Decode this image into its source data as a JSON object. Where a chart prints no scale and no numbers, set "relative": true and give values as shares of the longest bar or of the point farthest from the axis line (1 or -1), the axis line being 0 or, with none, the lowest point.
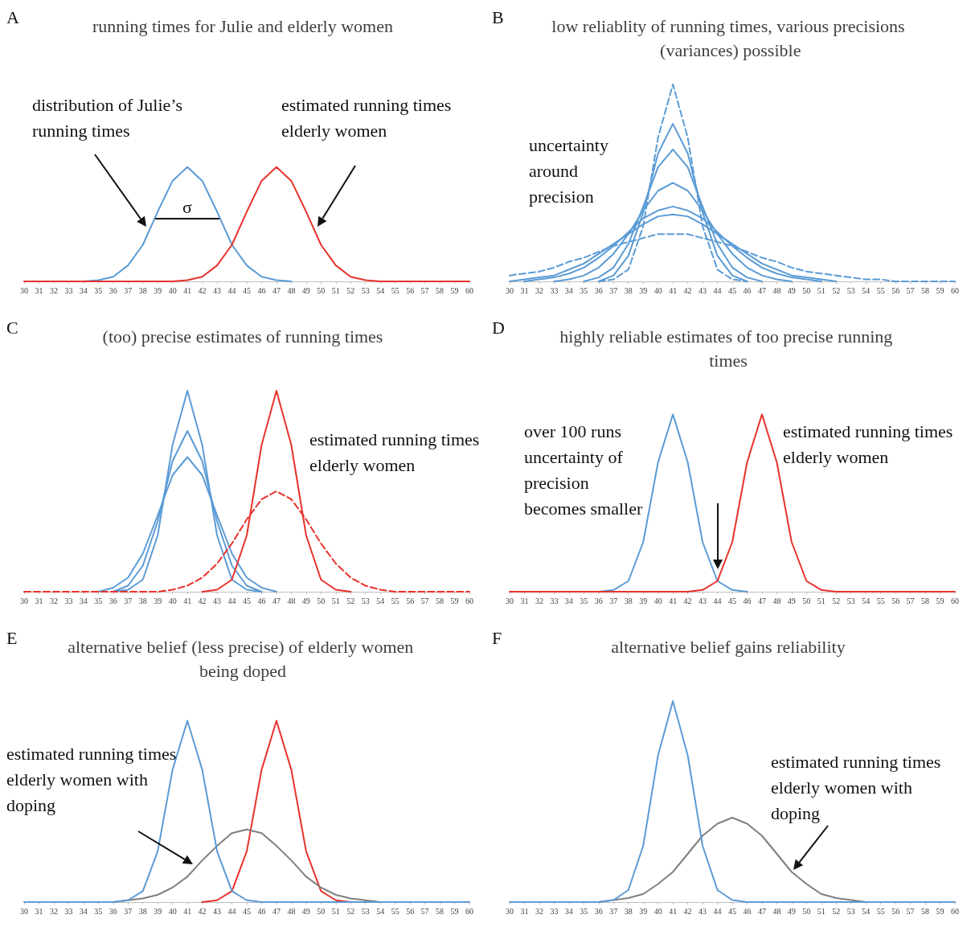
{
  "chart_data": [
    {
      "type": "line",
      "title": "running times for Julie and elderly women",
      "relative": true,
      "marker": "none",
      "line_style": "solid",
      "x": [
        30,
        31,
        32,
        33,
        34,
        35,
        36,
        37,
        38,
        39,
        40,
        41,
        42,
        43,
        44,
        45,
        46,
        47,
        48,
        49,
        50,
        51,
        52,
        53,
        54,
        55,
        56,
        57,
        58,
        59,
        60
      ],
      "xlim": [
        30,
        60
      ],
      "xticks": [
        30,
        31,
        32,
        33,
        34,
        35,
        36,
        37,
        38,
        39,
        40,
        41,
        42,
        43,
        44,
        45,
        46,
        47,
        48,
        49,
        50,
        51,
        52,
        53,
        54,
        55,
        56,
        57,
        58,
        59,
        60
      ],
      "annotations": [
        "A",
        "distribution of Julie’s running times",
        "estimated running times elderly women",
        "σ"
      ],
      "series": [
        {
          "color": "#5b9bd5",
          "values": [
            null,
            null,
            null,
            null,
            0,
            0.01,
            0.04,
            0.14,
            0.32,
            0.61,
            0.88,
            1,
            0.88,
            0.61,
            0.32,
            0.14,
            0.04,
            0.01,
            0,
            null,
            null,
            null,
            null,
            null,
            null,
            null,
            null,
            null,
            null,
            null,
            null
          ]
        },
        {
          "color": "#e8322b",
          "values": [
            0,
            0,
            0,
            0,
            0,
            0,
            0,
            0,
            0,
            0,
            0,
            0.01,
            0.04,
            0.14,
            0.32,
            0.61,
            0.88,
            1,
            0.88,
            0.61,
            0.32,
            0.14,
            0.04,
            0.01,
            0,
            0,
            0,
            0,
            0,
            0,
            0
          ]
        }
      ]
    },
    {
      "type": "line",
      "title": "low reliablity of running times, various precisions (variances) possible",
      "relative": true,
      "marker": "none",
      "line_style": "solid",
      "x": [
        30,
        31,
        32,
        33,
        34,
        35,
        36,
        37,
        38,
        39,
        40,
        41,
        42,
        43,
        44,
        45,
        46,
        47,
        48,
        49,
        50,
        51,
        52,
        53,
        54,
        55,
        56,
        57,
        58,
        59,
        60
      ],
      "xlim": [
        30,
        60
      ],
      "xticks": [
        30,
        31,
        32,
        33,
        34,
        35,
        36,
        37,
        38,
        39,
        40,
        41,
        42,
        43,
        44,
        45,
        46,
        47,
        48,
        49,
        50,
        51,
        52,
        53,
        54,
        55,
        56,
        57,
        58,
        59,
        60
      ],
      "annotations": [
        "B",
        "uncertainty around precision"
      ],
      "series": [
        {
          "color": "#5b9bd5",
          "line_style": "dashed",
          "values": [
            null,
            null,
            null,
            null,
            null,
            null,
            0,
            0.01,
            0.06,
            0.28,
            0.73,
            1,
            0.73,
            0.28,
            0.06,
            0.01,
            0,
            null,
            null,
            null,
            null,
            null,
            null,
            null,
            null,
            null,
            null,
            null,
            null,
            null,
            null
          ]
        },
        {
          "color": "#5b9bd5",
          "values": [
            null,
            null,
            null,
            null,
            null,
            null,
            0,
            0.03,
            0.13,
            0.35,
            0.65,
            0.8,
            0.65,
            0.35,
            0.13,
            0.03,
            0,
            null,
            null,
            null,
            null,
            null,
            null,
            null,
            null,
            null,
            null,
            null,
            null,
            null,
            null
          ]
        },
        {
          "color": "#5b9bd5",
          "values": [
            null,
            null,
            null,
            null,
            null,
            0,
            0.02,
            0.07,
            0.19,
            0.38,
            0.58,
            0.67,
            0.58,
            0.38,
            0.19,
            0.07,
            0.02,
            0,
            null,
            null,
            null,
            null,
            null,
            null,
            null,
            null,
            null,
            null,
            null,
            null,
            null
          ]
        },
        {
          "color": "#5b9bd5",
          "values": [
            null,
            null,
            null,
            0,
            0.01,
            0.03,
            0.07,
            0.14,
            0.24,
            0.36,
            0.46,
            0.5,
            0.46,
            0.36,
            0.24,
            0.14,
            0.07,
            0.03,
            0.01,
            0,
            null,
            null,
            null,
            null,
            null,
            null,
            null,
            null,
            null,
            null,
            null
          ]
        },
        {
          "color": "#5b9bd5",
          "values": [
            null,
            0,
            0.01,
            0.02,
            0.04,
            0.07,
            0.12,
            0.18,
            0.25,
            0.32,
            0.36,
            0.38,
            0.36,
            0.32,
            0.25,
            0.18,
            0.12,
            0.07,
            0.04,
            0.02,
            0.01,
            0,
            null,
            null,
            null,
            null,
            null,
            null,
            null,
            null,
            null
          ]
        },
        {
          "color": "#5b9bd5",
          "values": [
            0,
            0.01,
            0.02,
            0.03,
            0.06,
            0.09,
            0.14,
            0.19,
            0.24,
            0.29,
            0.33,
            0.34,
            0.33,
            0.29,
            0.24,
            0.19,
            0.14,
            0.09,
            0.06,
            0.03,
            0.02,
            0.01,
            0,
            null,
            null,
            null,
            null,
            null,
            null,
            null,
            null
          ]
        },
        {
          "color": "#5b9bd5",
          "line_style": "dashed",
          "values": [
            0.03,
            0.04,
            0.05,
            0.07,
            0.1,
            0.12,
            0.15,
            0.18,
            0.2,
            0.22,
            0.24,
            0.24,
            0.24,
            0.22,
            0.2,
            0.18,
            0.15,
            0.12,
            0.1,
            0.07,
            0.05,
            0.04,
            0.03,
            0.02,
            0.01,
            0.01,
            0,
            0,
            0,
            0,
            0
          ]
        }
      ]
    },
    {
      "type": "line",
      "title": "(too) precise estimates of running times",
      "relative": true,
      "marker": "none",
      "line_style": "solid",
      "x": [
        30,
        31,
        32,
        33,
        34,
        35,
        36,
        37,
        38,
        39,
        40,
        41,
        42,
        43,
        44,
        45,
        46,
        47,
        48,
        49,
        50,
        51,
        52,
        53,
        54,
        55,
        56,
        57,
        58,
        59,
        60
      ],
      "xlim": [
        30,
        60
      ],
      "xticks": [
        30,
        31,
        32,
        33,
        34,
        35,
        36,
        37,
        38,
        39,
        40,
        41,
        42,
        43,
        44,
        45,
        46,
        47,
        48,
        49,
        50,
        51,
        52,
        53,
        54,
        55,
        56,
        57,
        58,
        59,
        60
      ],
      "annotations": [
        "C",
        "estimated running times elderly women"
      ],
      "series": [
        {
          "color": "#5b9bd5",
          "values": [
            null,
            null,
            null,
            null,
            null,
            null,
            0,
            0.01,
            0.06,
            0.28,
            0.73,
            1,
            0.73,
            0.28,
            0.06,
            0.01,
            0,
            null,
            null,
            null,
            null,
            null,
            null,
            null,
            null,
            null,
            null,
            null,
            null,
            null,
            null
          ]
        },
        {
          "color": "#5b9bd5",
          "values": [
            null,
            null,
            null,
            null,
            null,
            null,
            0,
            0.03,
            0.13,
            0.35,
            0.65,
            0.8,
            0.65,
            0.35,
            0.13,
            0.03,
            0,
            null,
            null,
            null,
            null,
            null,
            null,
            null,
            null,
            null,
            null,
            null,
            null,
            null,
            null
          ]
        },
        {
          "color": "#5b9bd5",
          "values": [
            null,
            null,
            null,
            null,
            null,
            0,
            0.02,
            0.07,
            0.19,
            0.38,
            0.58,
            0.67,
            0.58,
            0.38,
            0.19,
            0.07,
            0.02,
            0,
            null,
            null,
            null,
            null,
            null,
            null,
            null,
            null,
            null,
            null,
            null,
            null,
            null
          ]
        },
        {
          "color": "#e8322b",
          "values": [
            null,
            null,
            null,
            null,
            null,
            null,
            null,
            null,
            null,
            null,
            null,
            null,
            0,
            0.01,
            0.06,
            0.28,
            0.73,
            1,
            0.73,
            0.28,
            0.06,
            0.01,
            0,
            null,
            null,
            null,
            null,
            null,
            null,
            null,
            null
          ]
        },
        {
          "color": "#e8322b",
          "line_style": "dashed",
          "values": [
            0,
            0,
            0,
            0,
            0,
            0,
            0,
            0,
            0,
            0,
            0.01,
            0.03,
            0.07,
            0.14,
            0.24,
            0.36,
            0.46,
            0.5,
            0.46,
            0.36,
            0.24,
            0.14,
            0.07,
            0.03,
            0.01,
            0,
            0,
            0,
            0,
            0,
            0
          ]
        }
      ]
    },
    {
      "type": "line",
      "title": "highly reliable estimates of too precise running times",
      "relative": true,
      "marker": "none",
      "line_style": "solid",
      "x": [
        30,
        31,
        32,
        33,
        34,
        35,
        36,
        37,
        38,
        39,
        40,
        41,
        42,
        43,
        44,
        45,
        46,
        47,
        48,
        49,
        50,
        51,
        52,
        53,
        54,
        55,
        56,
        57,
        58,
        59,
        60
      ],
      "xlim": [
        30,
        60
      ],
      "xticks": [
        30,
        31,
        32,
        33,
        34,
        35,
        36,
        37,
        38,
        39,
        40,
        41,
        42,
        43,
        44,
        45,
        46,
        47,
        48,
        49,
        50,
        51,
        52,
        53,
        54,
        55,
        56,
        57,
        58,
        59,
        60
      ],
      "annotations": [
        "D",
        "over 100 runs uncertainty of precision becomes smaller",
        "estimated running times elderly women"
      ],
      "series": [
        {
          "color": "#5b9bd5",
          "values": [
            null,
            null,
            null,
            null,
            null,
            null,
            0,
            0.01,
            0.06,
            0.28,
            0.73,
            1,
            0.73,
            0.28,
            0.06,
            0.01,
            0,
            null,
            null,
            null,
            null,
            null,
            null,
            null,
            null,
            null,
            null,
            null,
            null,
            null,
            null
          ]
        },
        {
          "color": "#e8322b",
          "values": [
            0,
            0,
            0,
            0,
            0,
            0,
            0,
            0,
            0,
            0,
            0,
            0,
            0,
            0.01,
            0.06,
            0.28,
            0.73,
            1,
            0.73,
            0.28,
            0.06,
            0.01,
            0,
            0,
            0,
            0,
            0,
            0,
            0,
            0,
            0
          ]
        }
      ]
    },
    {
      "type": "line",
      "title": "alternative belief (less precise) of elderly women being doped",
      "relative": true,
      "marker": "none",
      "line_style": "solid",
      "x": [
        30,
        31,
        32,
        33,
        34,
        35,
        36,
        37,
        38,
        39,
        40,
        41,
        42,
        43,
        44,
        45,
        46,
        47,
        48,
        49,
        50,
        51,
        52,
        53,
        54,
        55,
        56,
        57,
        58,
        59,
        60
      ],
      "xlim": [
        30,
        60
      ],
      "xticks": [
        30,
        31,
        32,
        33,
        34,
        35,
        36,
        37,
        38,
        39,
        40,
        41,
        42,
        43,
        44,
        45,
        46,
        47,
        48,
        49,
        50,
        51,
        52,
        53,
        54,
        55,
        56,
        57,
        58,
        59,
        60
      ],
      "annotations": [
        "E",
        "estimated running times elderly women with doping"
      ],
      "series": [
        {
          "color": "#e8322b",
          "values": [
            null,
            null,
            null,
            null,
            null,
            null,
            null,
            null,
            null,
            null,
            null,
            null,
            0,
            0.01,
            0.06,
            0.28,
            0.73,
            1,
            0.73,
            0.28,
            0.06,
            0.01,
            0,
            null,
            null,
            null,
            null,
            null,
            null,
            null,
            null
          ]
        },
        {
          "color": "#7f7f7f",
          "values": [
            null,
            null,
            null,
            null,
            null,
            null,
            0,
            0.01,
            0.02,
            0.04,
            0.08,
            0.14,
            0.23,
            0.31,
            0.38,
            0.4,
            0.38,
            0.31,
            0.23,
            0.14,
            0.08,
            0.04,
            0.02,
            0.01,
            0,
            null,
            null,
            null,
            null,
            null,
            null
          ]
        },
        {
          "color": "#5b9bd5",
          "values": [
            0,
            0,
            0,
            0,
            0,
            0,
            0,
            0.01,
            0.06,
            0.28,
            0.73,
            1,
            0.73,
            0.28,
            0.06,
            0.01,
            0,
            0,
            0,
            0,
            0,
            0,
            0,
            0,
            0,
            0,
            0,
            0,
            0,
            0,
            0
          ]
        }
      ]
    },
    {
      "type": "line",
      "title": "alternative belief gains reliability",
      "relative": true,
      "marker": "none",
      "line_style": "solid",
      "x": [
        30,
        31,
        32,
        33,
        34,
        35,
        36,
        37,
        38,
        39,
        40,
        41,
        42,
        43,
        44,
        45,
        46,
        47,
        48,
        49,
        50,
        51,
        52,
        53,
        54,
        55,
        56,
        57,
        58,
        59,
        60
      ],
      "xlim": [
        30,
        60
      ],
      "xticks": [
        30,
        31,
        32,
        33,
        34,
        35,
        36,
        37,
        38,
        39,
        40,
        41,
        42,
        43,
        44,
        45,
        46,
        47,
        48,
        49,
        50,
        51,
        52,
        53,
        54,
        55,
        56,
        57,
        58,
        59,
        60
      ],
      "annotations": [
        "F",
        "estimated running times elderly women with doping"
      ],
      "series": [
        {
          "color": "#7f7f7f",
          "values": [
            null,
            null,
            null,
            null,
            null,
            null,
            0,
            0.01,
            0.02,
            0.04,
            0.09,
            0.15,
            0.24,
            0.33,
            0.39,
            0.42,
            0.39,
            0.33,
            0.24,
            0.15,
            0.09,
            0.04,
            0.02,
            0.01,
            0,
            null,
            null,
            null,
            null,
            null,
            null
          ]
        },
        {
          "color": "#5b9bd5",
          "values": [
            0,
            0,
            0,
            0,
            0,
            0,
            0,
            0.01,
            0.06,
            0.28,
            0.73,
            1,
            0.73,
            0.28,
            0.06,
            0.01,
            0,
            0,
            0,
            0,
            0,
            0,
            0,
            0,
            0,
            0,
            0,
            0,
            0,
            0,
            0
          ]
        }
      ]
    }
  ]
}
